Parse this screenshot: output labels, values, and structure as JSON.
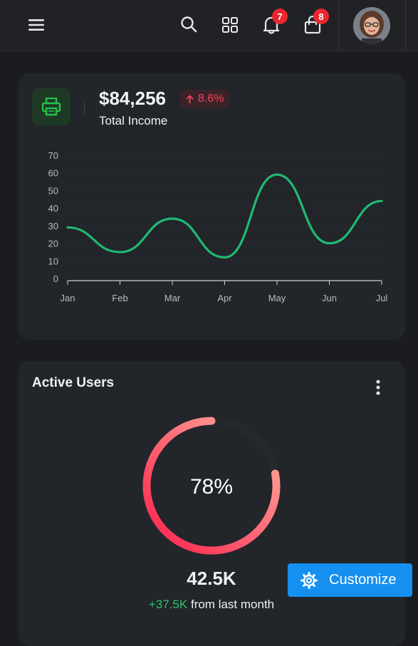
{
  "topbar": {
    "notifications_count": "7",
    "cart_count": "8"
  },
  "income": {
    "value": "$84,256",
    "change": "8.6%",
    "label": "Total Income"
  },
  "chart_data": {
    "type": "line",
    "categories": [
      "Jan",
      "Feb",
      "Mar",
      "Apr",
      "May",
      "Jun",
      "Jul"
    ],
    "series": [
      {
        "values": [
          29,
          15,
          34,
          12,
          59,
          20,
          44
        ]
      }
    ],
    "yticks": [
      "0",
      "10",
      "20",
      "30",
      "40",
      "50",
      "60",
      "70"
    ],
    "ylim": [
      0,
      70
    ],
    "grid": true,
    "color": "#1fba74"
  },
  "active_users": {
    "title": "Active Users",
    "percent_label": "78%",
    "percent": 78,
    "total": "42.5K",
    "delta": "+37.5K",
    "delta_suffix": "from last month"
  },
  "customize": {
    "label": "Customize"
  },
  "colors": {
    "accent": "#1690f0",
    "income_green": "#1fba74",
    "badge_red": "#e8272f",
    "gradient_start": "#ff1f4a",
    "gradient_end": "#ffa596"
  }
}
